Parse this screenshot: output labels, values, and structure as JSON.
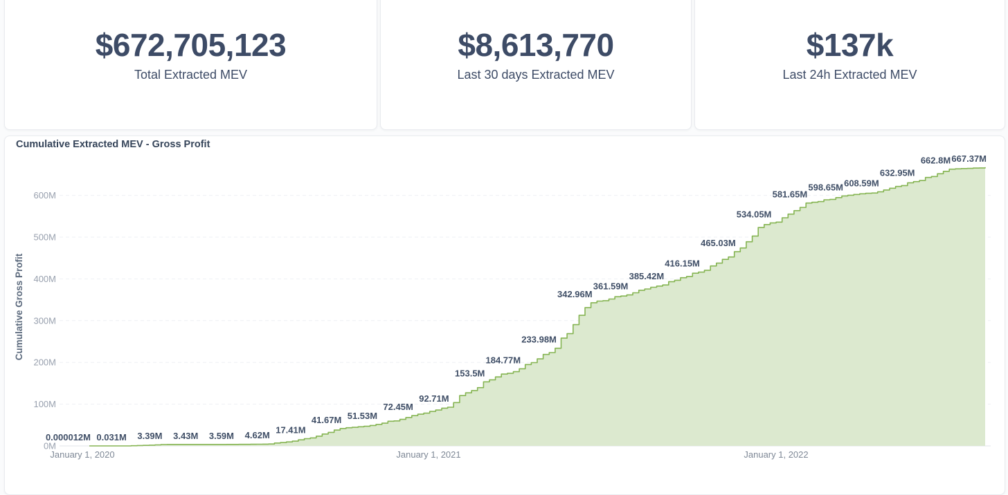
{
  "stats": [
    {
      "value": "$672,705,123",
      "label": "Total Extracted MEV"
    },
    {
      "value": "$8,613,770",
      "label": "Last 30 days Extracted MEV"
    },
    {
      "value": "$137k",
      "label": "Last 24h Extracted MEV"
    }
  ],
  "chart_data": {
    "type": "area",
    "title": "Cumulative Extracted MEV - Gross Profit",
    "xlabel": "",
    "ylabel": "Cumulative Gross Profit",
    "units": "millions USD",
    "x_ticks": [
      "January 1, 2020",
      "January 1, 2021",
      "January 1, 2022"
    ],
    "y_ticks": [
      "0M",
      "100M",
      "200M",
      "300M",
      "400M",
      "500M",
      "600M"
    ],
    "ylim": [
      0,
      690
    ],
    "grid": "horizontal-dashed",
    "legend": "none",
    "points": [
      {
        "label": "0.000012M",
        "value_m": 1.2e-05
      },
      {
        "label": "0.031M",
        "value_m": 0.031
      },
      {
        "label": "3.39M",
        "value_m": 3.39
      },
      {
        "label": "3.43M",
        "value_m": 3.43
      },
      {
        "label": "3.59M",
        "value_m": 3.59
      },
      {
        "label": "4.62M",
        "value_m": 4.62
      },
      {
        "label": "17.41M",
        "value_m": 17.41
      },
      {
        "label": "41.67M",
        "value_m": 41.67
      },
      {
        "label": "51.53M",
        "value_m": 51.53
      },
      {
        "label": "72.45M",
        "value_m": 72.45
      },
      {
        "label": "92.71M",
        "value_m": 92.71
      },
      {
        "label": "153.5M",
        "value_m": 153.5
      },
      {
        "label": "184.77M",
        "value_m": 184.77
      },
      {
        "label": "233.98M",
        "value_m": 233.98
      },
      {
        "label": "342.96M",
        "value_m": 342.96
      },
      {
        "label": "361.59M",
        "value_m": 361.59
      },
      {
        "label": "385.42M",
        "value_m": 385.42
      },
      {
        "label": "416.15M",
        "value_m": 416.15
      },
      {
        "label": "465.03M",
        "value_m": 465.03
      },
      {
        "label": "534.05M",
        "value_m": 534.05
      },
      {
        "label": "581.65M",
        "value_m": 581.65
      },
      {
        "label": "598.65M",
        "value_m": 598.65
      },
      {
        "label": "608.59M",
        "value_m": 608.59
      },
      {
        "label": "632.95M",
        "value_m": 632.95
      },
      {
        "label": "662.8M",
        "value_m": 662.8
      },
      {
        "label": "667.37M",
        "value_m": 667.37
      }
    ],
    "colors": {
      "line": "#85b452",
      "fill": "#dce9cf",
      "data_label": "#3f4e66",
      "axis_tick_text": "#98a0ae",
      "date_text": "#7e8896",
      "grid": "#eef0f4",
      "axis_line": "#e2e5ea",
      "y_title": "#5d6b7e"
    }
  }
}
